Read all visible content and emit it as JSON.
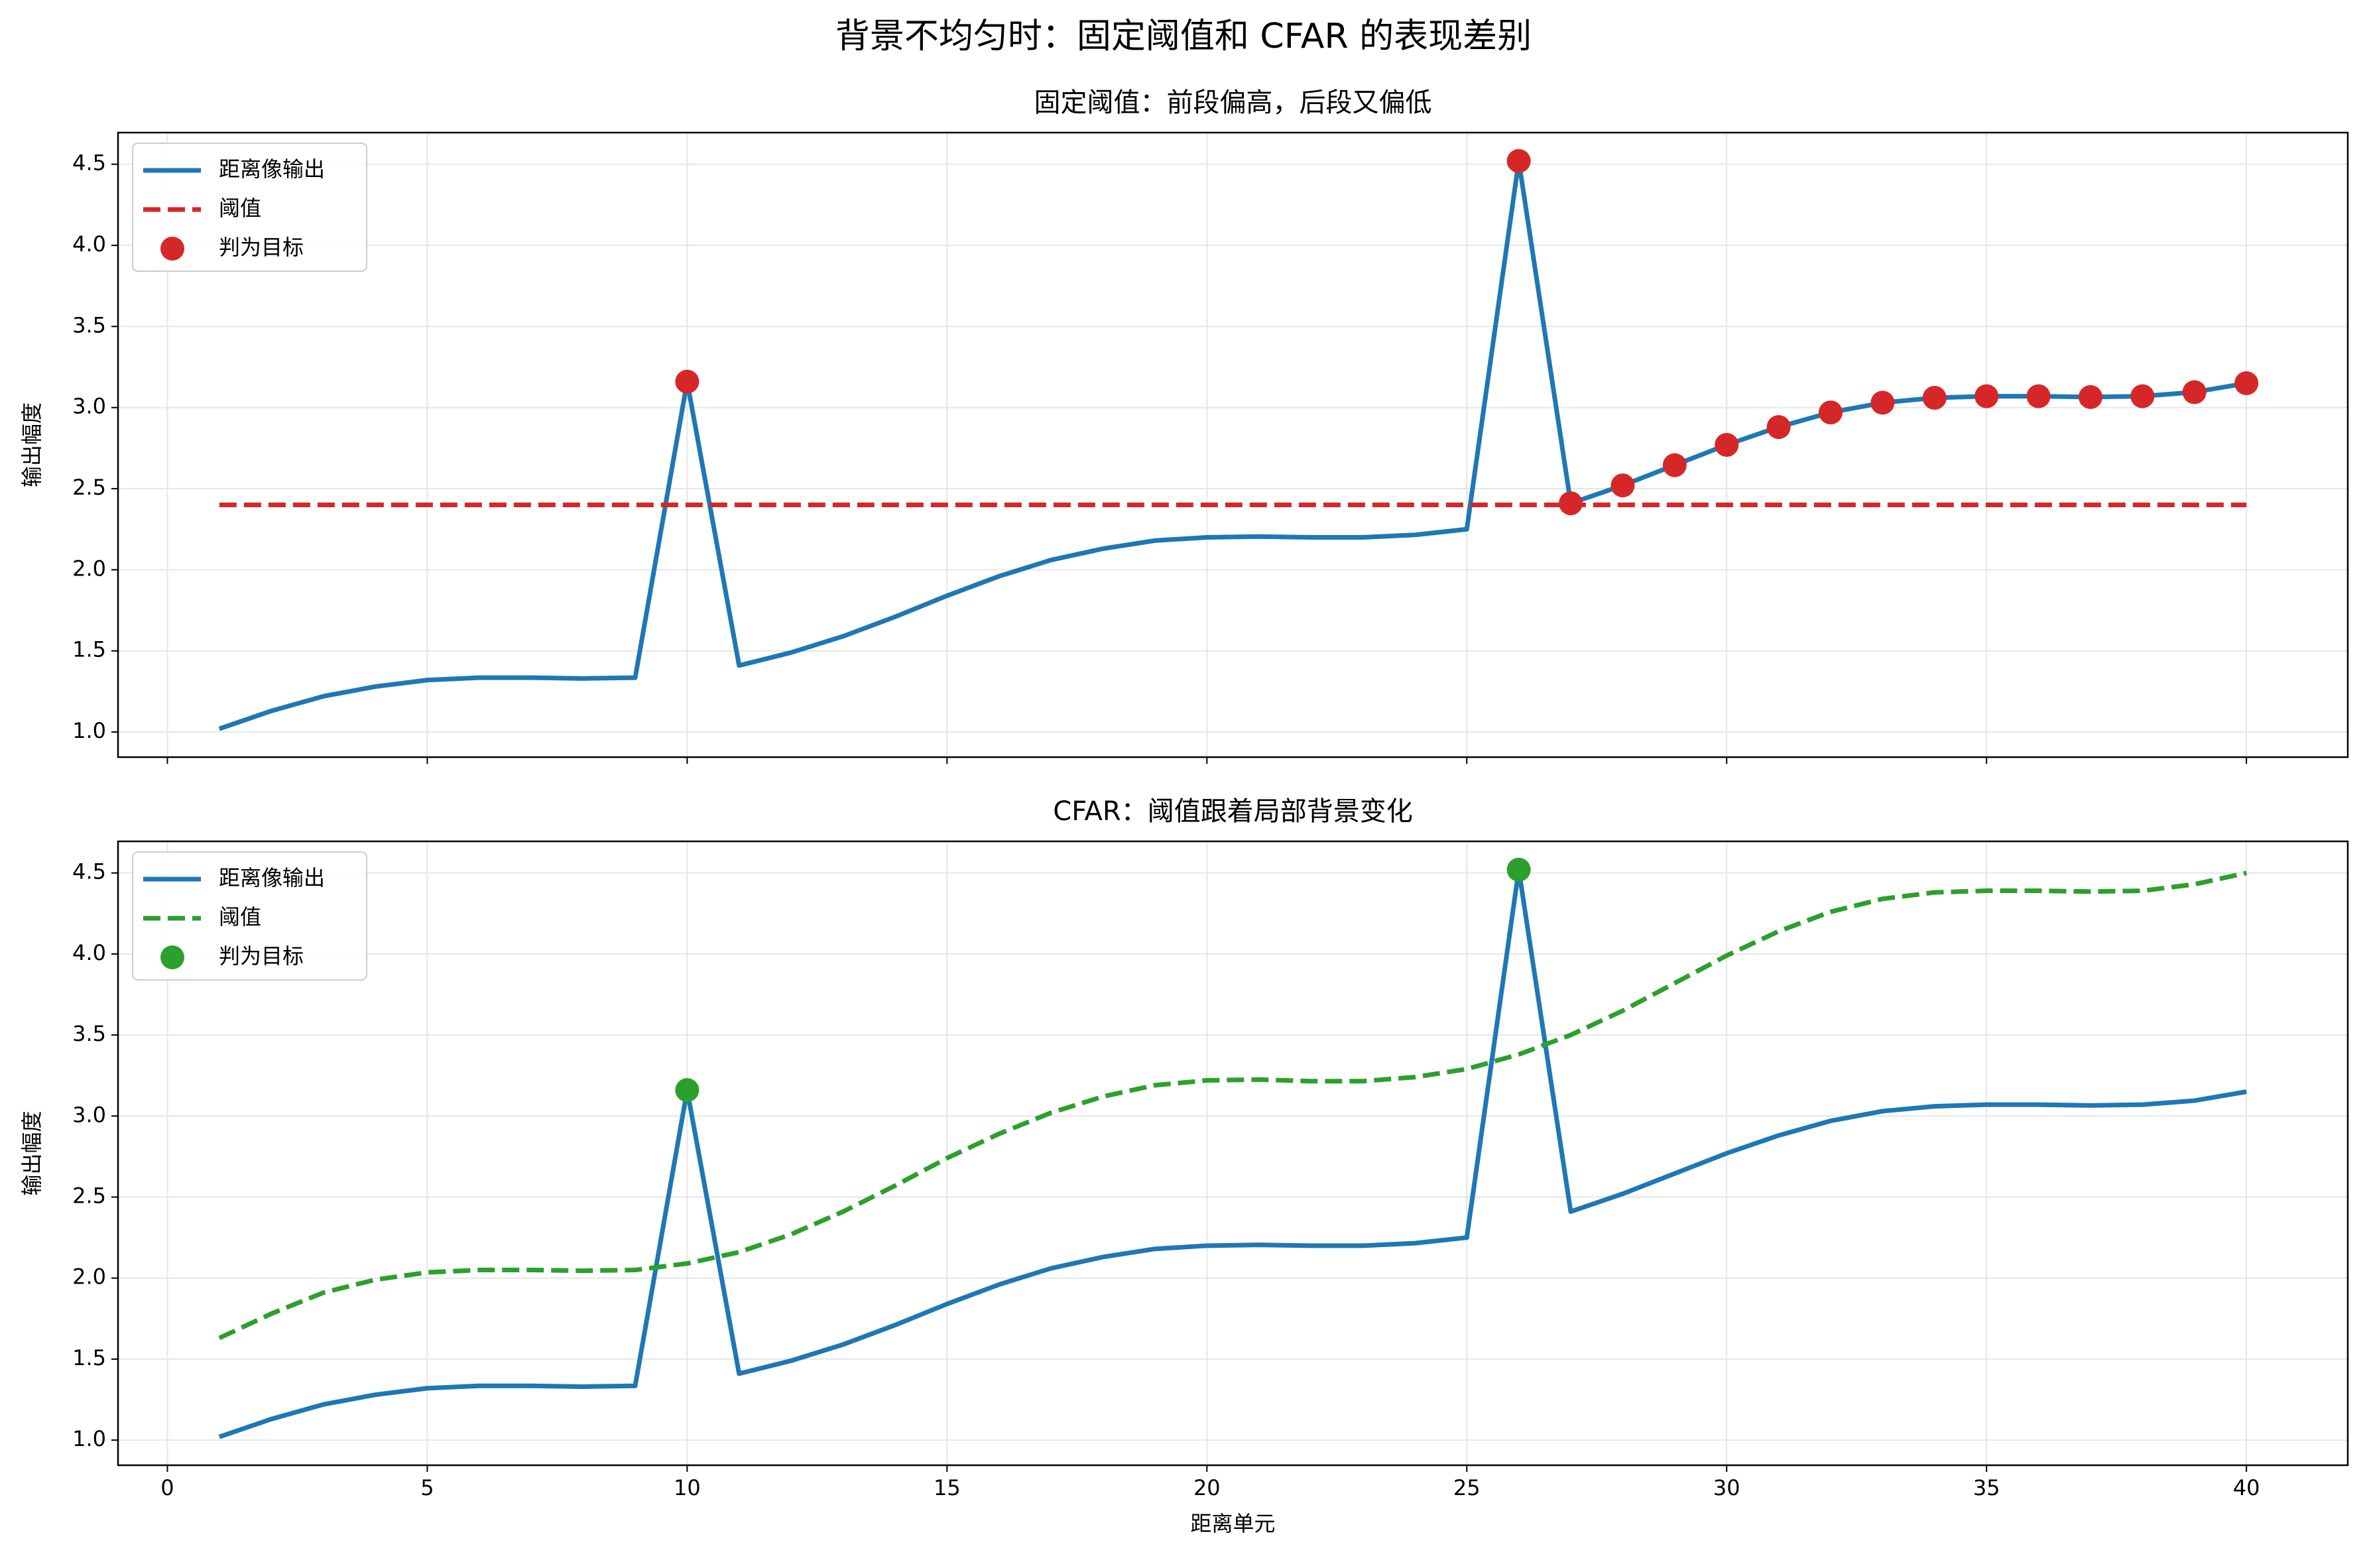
{
  "title": "背景不均匀时：固定阈值和 CFAR 的表现差别",
  "chart_data": [
    {
      "type": "line",
      "title": "固定阈值：前段偏高，后段又偏低",
      "ylabel": "输出幅度",
      "x": [
        1,
        2,
        3,
        4,
        5,
        6,
        7,
        8,
        9,
        10,
        11,
        12,
        13,
        14,
        15,
        16,
        17,
        18,
        19,
        20,
        21,
        22,
        23,
        24,
        25,
        26,
        27,
        28,
        29,
        30,
        31,
        32,
        33,
        34,
        35,
        36,
        37,
        38,
        39,
        40
      ],
      "series": [
        {
          "name": "距离像输出",
          "color": "#1f77b4",
          "style": "solid",
          "values": [
            1.02,
            1.13,
            1.22,
            1.28,
            1.32,
            1.335,
            1.335,
            1.33,
            1.335,
            3.16,
            1.41,
            1.49,
            1.59,
            1.71,
            1.84,
            1.96,
            2.06,
            2.13,
            2.18,
            2.2,
            2.205,
            2.2,
            2.2,
            2.215,
            2.25,
            4.52,
            2.41,
            2.52,
            2.645,
            2.77,
            2.88,
            2.97,
            3.03,
            3.06,
            3.07,
            3.07,
            3.065,
            3.07,
            3.095,
            3.15
          ]
        },
        {
          "name": "阈值",
          "color": "#d62728",
          "style": "dashed",
          "values": [
            2.4,
            2.4,
            2.4,
            2.4,
            2.4,
            2.4,
            2.4,
            2.4,
            2.4,
            2.4,
            2.4,
            2.4,
            2.4,
            2.4,
            2.4,
            2.4,
            2.4,
            2.4,
            2.4,
            2.4,
            2.4,
            2.4,
            2.4,
            2.4,
            2.4,
            2.4,
            2.4,
            2.4,
            2.4,
            2.4,
            2.4,
            2.4,
            2.4,
            2.4,
            2.4,
            2.4,
            2.4,
            2.4,
            2.4,
            2.4
          ]
        },
        {
          "name": "判为目标",
          "color": "#d62728",
          "style": "scatter",
          "x": [
            10,
            26,
            27,
            28,
            29,
            30,
            31,
            32,
            33,
            34,
            35,
            36,
            37,
            38,
            39,
            40
          ],
          "values": [
            3.16,
            4.52,
            2.41,
            2.52,
            2.645,
            2.77,
            2.88,
            2.97,
            3.03,
            3.06,
            3.07,
            3.07,
            3.065,
            3.07,
            3.095,
            3.15
          ]
        }
      ],
      "xlim": [
        -0.95,
        41.95
      ],
      "xticks": [
        0,
        5,
        10,
        15,
        20,
        25,
        30,
        35,
        40
      ],
      "xtick_labels": false,
      "ylim": [
        0.845,
        4.695
      ],
      "yticks": [
        {
          "value": 1,
          "label": "1.0"
        },
        {
          "value": 1.5,
          "label": "1.5"
        },
        {
          "value": 2,
          "label": "2.0"
        },
        {
          "value": 2.5,
          "label": "2.5"
        },
        {
          "value": 3,
          "label": "3.0"
        },
        {
          "value": 3.5,
          "label": "3.5"
        },
        {
          "value": 4,
          "label": "4.0"
        },
        {
          "value": 4.5,
          "label": "4.5"
        }
      ],
      "grid": true,
      "legend": "upper left"
    },
    {
      "type": "line",
      "title": "CFAR：阈值跟着局部背景变化",
      "xlabel": "距离单元",
      "ylabel": "输出幅度",
      "x": [
        1,
        2,
        3,
        4,
        5,
        6,
        7,
        8,
        9,
        10,
        11,
        12,
        13,
        14,
        15,
        16,
        17,
        18,
        19,
        20,
        21,
        22,
        23,
        24,
        25,
        26,
        27,
        28,
        29,
        30,
        31,
        32,
        33,
        34,
        35,
        36,
        37,
        38,
        39,
        40
      ],
      "series": [
        {
          "name": "距离像输出",
          "color": "#1f77b4",
          "style": "solid",
          "values": [
            1.02,
            1.13,
            1.22,
            1.28,
            1.32,
            1.335,
            1.335,
            1.33,
            1.335,
            3.16,
            1.41,
            1.49,
            1.59,
            1.71,
            1.84,
            1.96,
            2.06,
            2.13,
            2.18,
            2.2,
            2.205,
            2.2,
            2.2,
            2.215,
            2.25,
            4.52,
            2.41,
            2.52,
            2.645,
            2.77,
            2.88,
            2.97,
            3.03,
            3.06,
            3.07,
            3.07,
            3.065,
            3.07,
            3.095,
            3.15
          ]
        },
        {
          "name": "阈值",
          "color": "#2ca02c",
          "style": "dashed",
          "values": [
            1.63,
            1.78,
            1.91,
            1.99,
            2.035,
            2.05,
            2.05,
            2.045,
            2.05,
            2.09,
            2.16,
            2.27,
            2.41,
            2.57,
            2.74,
            2.89,
            3.02,
            3.12,
            3.19,
            3.22,
            3.225,
            3.215,
            3.215,
            3.24,
            3.29,
            3.38,
            3.5,
            3.65,
            3.82,
            3.99,
            4.14,
            4.26,
            4.34,
            4.38,
            4.39,
            4.39,
            4.385,
            4.39,
            4.43,
            4.5
          ]
        },
        {
          "name": "判为目标",
          "color": "#2ca02c",
          "style": "scatter",
          "x": [
            10,
            26
          ],
          "values": [
            3.16,
            4.52
          ]
        }
      ],
      "xlim": [
        -0.95,
        41.95
      ],
      "xticks": [
        0,
        5,
        10,
        15,
        20,
        25,
        30,
        35,
        40
      ],
      "xtick_labels": true,
      "ylim": [
        0.845,
        4.695
      ],
      "yticks": [
        {
          "value": 1,
          "label": "1.0"
        },
        {
          "value": 1.5,
          "label": "1.5"
        },
        {
          "value": 2,
          "label": "2.0"
        },
        {
          "value": 2.5,
          "label": "2.5"
        },
        {
          "value": 3,
          "label": "3.0"
        },
        {
          "value": 3.5,
          "label": "3.5"
        },
        {
          "value": 4,
          "label": "4.0"
        },
        {
          "value": 4.5,
          "label": "4.5"
        }
      ],
      "grid": true,
      "legend": "upper left"
    }
  ]
}
